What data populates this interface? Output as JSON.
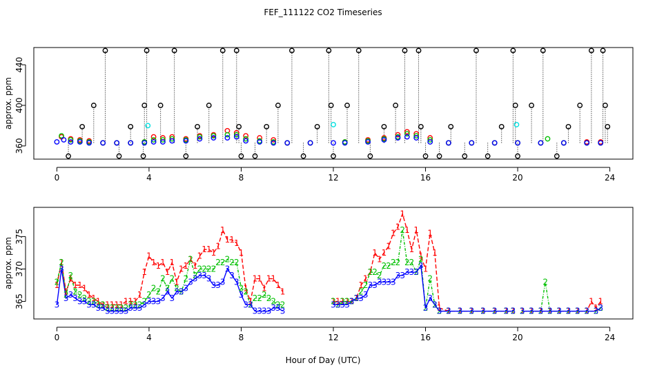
{
  "title": "FEF_111122  CO2 Timeseries",
  "xlabel": "Hour of Day (UTC)",
  "colors": {
    "red": "#ff0000",
    "green": "#00c000",
    "blue": "#0000ff",
    "cyan": "#00e0e0",
    "black": "#000000"
  },
  "chart_data": [
    {
      "type": "scatter",
      "panel": "top",
      "ylabel": "approx. ppm",
      "xlim": [
        -1,
        25
      ],
      "ylim": [
        347,
        457
      ],
      "xticks": [
        "0",
        "4",
        "8",
        "12",
        "16",
        "20",
        "24"
      ],
      "xtick_values": [
        0,
        4,
        8,
        12,
        16,
        20,
        24
      ],
      "yticks": [
        "360",
        "400",
        "440"
      ],
      "ytick_values": [
        360,
        400,
        440
      ],
      "series": [
        {
          "name": "red",
          "color": "#ff0000",
          "x": [
            0.2,
            0.6,
            1.0,
            1.4,
            2.0,
            2.6,
            3.2,
            3.8,
            4.2,
            4.6,
            5.0,
            5.6,
            6.2,
            6.8,
            7.4,
            7.8,
            8.2,
            8.8,
            9.4,
            10.0,
            11.0,
            12.5,
            13.5,
            14.2,
            14.8,
            15.2,
            15.6,
            16.2,
            17.0,
            18.0,
            19.0,
            20.0,
            21.0,
            22.0,
            23.0,
            23.6
          ],
          "y": [
            369,
            367,
            366,
            365,
            363,
            363,
            363,
            364,
            369,
            368,
            369,
            367,
            370,
            371,
            375,
            373,
            370,
            368,
            366,
            363,
            363,
            364,
            366,
            368,
            371,
            374,
            372,
            368,
            363,
            363,
            363,
            363,
            363,
            363,
            364,
            364
          ]
        },
        {
          "name": "green",
          "color": "#00c000",
          "x": [
            0.2,
            0.6,
            1.0,
            1.4,
            2.0,
            2.6,
            3.2,
            3.8,
            4.2,
            4.6,
            5.0,
            5.6,
            6.2,
            6.8,
            7.4,
            7.8,
            8.2,
            8.8,
            9.4,
            10.0,
            11.0,
            12.5,
            13.5,
            14.2,
            14.8,
            15.2,
            15.6,
            16.2,
            17.0,
            18.0,
            19.0,
            20.0,
            21.0,
            21.3,
            22.0,
            23.0,
            23.6
          ],
          "y": [
            370,
            366,
            365,
            364,
            363,
            363,
            363,
            364,
            366,
            366,
            367,
            366,
            369,
            370,
            371,
            371,
            367,
            365,
            364,
            363,
            363,
            364,
            365,
            367,
            369,
            372,
            370,
            366,
            363,
            363,
            363,
            363,
            363,
            367,
            363,
            363,
            363
          ]
        },
        {
          "name": "blue",
          "color": "#0000ff",
          "x": [
            0.0,
            0.3,
            0.6,
            1.0,
            1.4,
            2.0,
            2.6,
            3.2,
            3.8,
            4.2,
            4.6,
            5.0,
            5.6,
            6.2,
            6.8,
            7.4,
            7.8,
            8.2,
            8.8,
            9.4,
            10.0,
            11.0,
            12.0,
            12.5,
            13.5,
            14.2,
            14.8,
            15.2,
            15.6,
            16.2,
            17.0,
            18.0,
            19.0,
            20.0,
            21.0,
            22.0,
            23.0,
            23.6
          ],
          "y": [
            364,
            366,
            364,
            364,
            363,
            363,
            363,
            363,
            363,
            364,
            364,
            365,
            365,
            367,
            368,
            368,
            369,
            365,
            364,
            363,
            363,
            363,
            363,
            363,
            364,
            366,
            368,
            369,
            368,
            364,
            363,
            363,
            363,
            363,
            363,
            363,
            363,
            363
          ]
        },
        {
          "name": "cyan",
          "color": "#00e0e0",
          "x": [
            3.95,
            12.0,
            19.95
          ],
          "y": [
            380,
            381,
            381
          ]
        },
        {
          "name": "black",
          "color": "#000000",
          "x": [
            0.5,
            1.1,
            1.6,
            2.1,
            2.7,
            3.2,
            3.75,
            3.8,
            3.9,
            4.5,
            5.1,
            5.6,
            6.1,
            6.6,
            7.2,
            7.8,
            7.9,
            8.0,
            8.6,
            9.1,
            9.6,
            10.2,
            10.7,
            11.3,
            11.8,
            11.9,
            12.0,
            12.6,
            13.1,
            13.6,
            14.2,
            14.7,
            15.1,
            15.7,
            15.8,
            16.0,
            16.6,
            17.1,
            17.7,
            18.2,
            18.7,
            19.3,
            19.8,
            19.9,
            20.0,
            20.6,
            21.1,
            21.7,
            22.2,
            22.7,
            23.2,
            23.7,
            23.8,
            23.9
          ],
          "y": [
            350,
            379,
            400,
            454,
            350,
            379,
            350,
            400,
            454,
            400,
            454,
            350,
            379,
            400,
            454,
            454,
            379,
            350,
            350,
            379,
            400,
            454,
            350,
            379,
            454,
            400,
            350,
            400,
            454,
            350,
            379,
            400,
            454,
            454,
            379,
            350,
            350,
            379,
            350,
            454,
            350,
            379,
            454,
            400,
            350,
            400,
            454,
            350,
            379,
            400,
            454,
            454,
            400,
            379
          ]
        }
      ]
    },
    {
      "type": "line",
      "panel": "bottom",
      "ylabel": "approx. ppm",
      "xlim": [
        -1,
        25
      ],
      "ylim": [
        362.3,
        379.5
      ],
      "xticks": [
        "0",
        "4",
        "8",
        "12",
        "16",
        "20",
        "24"
      ],
      "xtick_values": [
        0,
        4,
        8,
        12,
        16,
        20,
        24
      ],
      "yticks": [
        "365",
        "370",
        "375"
      ],
      "ytick_values": [
        365,
        370,
        375
      ],
      "series": [
        {
          "name": "1",
          "color": "#ff0000",
          "x": [
            0.0,
            0.2,
            0.4,
            0.6,
            0.8,
            1.0,
            1.2,
            1.4,
            1.6,
            1.8,
            2.0,
            2.2,
            2.4,
            2.6,
            2.8,
            3.0,
            3.2,
            3.4,
            3.6,
            3.8,
            4.0,
            4.2,
            4.4,
            4.6,
            4.8,
            5.0,
            5.2,
            5.4,
            5.6,
            5.8,
            6.0,
            6.2,
            6.4,
            6.6,
            6.8,
            7.0,
            7.2,
            7.4,
            7.6,
            7.8,
            8.0,
            8.2,
            8.4,
            8.6,
            8.8,
            9.0,
            9.2,
            9.4,
            9.6,
            9.8,
            null,
            12.0,
            12.2,
            12.4,
            12.6,
            12.8,
            13.0,
            13.2,
            13.4,
            13.6,
            13.8,
            14.0,
            14.2,
            14.4,
            14.6,
            14.8,
            15.0,
            15.2,
            15.4,
            15.6,
            15.8,
            16.0,
            16.2,
            16.4,
            16.6,
            17.0,
            17.5,
            18.0,
            18.5,
            19.0,
            19.5,
            19.8,
            null,
            20.2,
            20.6,
            21.0,
            21.4,
            21.8,
            22.2,
            22.6,
            23.0,
            23.2,
            23.4,
            23.6
          ],
          "y": [
            367.5,
            371,
            366.5,
            368.5,
            367.5,
            367.5,
            367,
            366,
            365.5,
            365,
            364.5,
            364.5,
            364.5,
            364.5,
            364.5,
            365,
            365,
            365,
            366,
            369.5,
            372,
            371,
            370.5,
            371,
            369.5,
            371,
            368,
            370,
            370.5,
            371.5,
            370.5,
            372,
            373,
            373,
            372.5,
            373.5,
            376,
            374.5,
            374.5,
            374,
            372.5,
            367,
            365,
            368.5,
            368.5,
            367,
            368.5,
            368.5,
            367.5,
            366.5,
            null,
            365,
            365,
            365,
            365,
            365,
            365.5,
            367.5,
            368.5,
            369.5,
            372.5,
            371.5,
            372.5,
            373.5,
            375.5,
            376.5,
            378.5,
            376,
            373,
            376,
            372,
            370,
            375.5,
            372.5,
            364,
            363.5,
            363.5,
            363.5,
            363.5,
            363.5,
            363.5,
            363.5,
            null,
            363.5,
            363.5,
            363.5,
            363.5,
            363.5,
            363.5,
            363.5,
            363.5,
            365,
            364,
            365
          ]
        },
        {
          "name": "2",
          "color": "#00c000",
          "x": [
            0.0,
            0.2,
            0.4,
            0.6,
            0.8,
            1.0,
            1.2,
            1.4,
            1.6,
            1.8,
            2.0,
            2.2,
            2.4,
            2.6,
            2.8,
            3.0,
            3.2,
            3.4,
            3.6,
            3.8,
            4.0,
            4.2,
            4.4,
            4.6,
            4.8,
            5.0,
            5.2,
            5.4,
            5.6,
            5.8,
            6.0,
            6.2,
            6.4,
            6.6,
            6.8,
            7.0,
            7.2,
            7.4,
            7.6,
            7.8,
            8.0,
            8.2,
            8.4,
            8.6,
            8.8,
            9.0,
            9.2,
            9.4,
            9.6,
            9.8,
            null,
            12.0,
            12.2,
            12.4,
            12.6,
            12.8,
            13.0,
            13.2,
            13.4,
            13.6,
            13.8,
            14.0,
            14.2,
            14.4,
            14.6,
            14.8,
            15.0,
            15.2,
            15.4,
            15.6,
            15.8,
            16.0,
            16.2,
            16.4,
            16.6,
            17.0,
            17.5,
            18.0,
            18.5,
            19.0,
            19.5,
            19.8,
            null,
            20.2,
            20.6,
            21.0,
            21.2,
            21.4,
            21.8,
            22.2,
            22.6,
            23.0,
            23.4,
            23.6
          ],
          "y": [
            368,
            371,
            366,
            369,
            366.5,
            366,
            365.5,
            365,
            365,
            364.5,
            364.5,
            364,
            364,
            364,
            364,
            364,
            364.5,
            364.5,
            364.5,
            365,
            366,
            367,
            366.5,
            368.5,
            367,
            368.5,
            367,
            366.5,
            368.5,
            371.5,
            369,
            370,
            370,
            370,
            370,
            371,
            371,
            371.5,
            371,
            371,
            367,
            366.5,
            364.5,
            365.5,
            365.5,
            366,
            365.5,
            365,
            364.5,
            364.5,
            null,
            365,
            364.5,
            365,
            365,
            365,
            365.5,
            366.5,
            367.5,
            369.5,
            369.5,
            369,
            370.5,
            370.5,
            371,
            371,
            376,
            371,
            371,
            369.5,
            371.5,
            364,
            368.5,
            364.5,
            363.5,
            363.5,
            363.5,
            363.5,
            363.5,
            363.5,
            363.5,
            363.5,
            null,
            363.5,
            363.5,
            363.5,
            368,
            363.5,
            363.5,
            363.5,
            363.5,
            363.5,
            363.5,
            364
          ]
        },
        {
          "name": "3",
          "color": "#0000ff",
          "x": [
            0.0,
            0.2,
            0.4,
            0.6,
            0.8,
            1.0,
            1.2,
            1.4,
            1.6,
            1.8,
            2.0,
            2.2,
            2.4,
            2.6,
            2.8,
            3.0,
            3.2,
            3.4,
            3.6,
            3.8,
            4.0,
            4.2,
            4.4,
            4.6,
            4.8,
            5.0,
            5.2,
            5.4,
            5.6,
            5.8,
            6.0,
            6.2,
            6.4,
            6.6,
            6.8,
            7.0,
            7.2,
            7.4,
            7.6,
            7.8,
            8.0,
            8.2,
            8.4,
            8.6,
            8.8,
            9.0,
            9.2,
            9.4,
            9.6,
            9.8,
            null,
            12.0,
            12.2,
            12.4,
            12.6,
            12.8,
            13.0,
            13.2,
            13.4,
            13.6,
            13.8,
            14.0,
            14.2,
            14.4,
            14.6,
            14.8,
            15.0,
            15.2,
            15.4,
            15.6,
            15.8,
            16.0,
            16.2,
            16.4,
            16.6,
            17.0,
            17.5,
            18.0,
            18.5,
            19.0,
            19.5,
            19.8,
            null,
            20.2,
            20.6,
            21.0,
            21.4,
            21.8,
            22.2,
            22.6,
            23.0,
            23.4,
            23.6
          ],
          "y": [
            364.5,
            370,
            365.5,
            366,
            365.5,
            365,
            365,
            364.5,
            364.5,
            364,
            364,
            363.5,
            363.5,
            363.5,
            363.5,
            363.5,
            364,
            364,
            364,
            364.5,
            365,
            365,
            365,
            365.5,
            366.5,
            365.5,
            366.5,
            366.5,
            367,
            368,
            368.5,
            369,
            369,
            368.5,
            367.5,
            367.5,
            368,
            370,
            369,
            368,
            366,
            364.5,
            364.5,
            363.5,
            363.5,
            363.5,
            363.5,
            364,
            364,
            363.5,
            null,
            364.5,
            364.5,
            364.5,
            364.5,
            365,
            365.5,
            365.5,
            366,
            367.5,
            367.5,
            368,
            368,
            368,
            368,
            369,
            369,
            369.5,
            369.5,
            369.5,
            370.5,
            364,
            365.5,
            364.5,
            363.5,
            363.5,
            363.5,
            363.5,
            363.5,
            363.5,
            363.5,
            363.5,
            null,
            363.5,
            363.5,
            363.5,
            363.5,
            363.5,
            363.5,
            363.5,
            363.5,
            363.5,
            364
          ]
        }
      ]
    }
  ]
}
